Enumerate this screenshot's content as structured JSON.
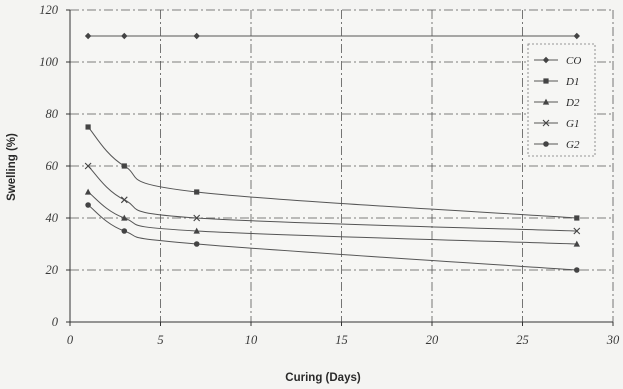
{
  "chart_data": {
    "type": "line",
    "xlabel": "Curing (Days)",
    "ylabel": "Swelling (%)",
    "xlim": [
      0,
      30
    ],
    "ylim": [
      0,
      120
    ],
    "x_ticks": [
      0,
      5,
      10,
      15,
      20,
      25,
      30
    ],
    "y_ticks": [
      0,
      20,
      40,
      60,
      80,
      100,
      120
    ],
    "x_tick_labels": [
      "0",
      "5",
      "10",
      "15",
      "20",
      "25",
      "30"
    ],
    "y_tick_labels": [
      "0",
      "20",
      "40",
      "60",
      "80",
      "100",
      "120"
    ],
    "grid": true,
    "legend_position": "top-right",
    "series": [
      {
        "name": "CO",
        "marker": "diamond",
        "x": [
          1,
          3,
          7,
          28
        ],
        "values": [
          110,
          110,
          110,
          110
        ]
      },
      {
        "name": "D1",
        "marker": "square",
        "x": [
          1,
          3,
          7,
          28
        ],
        "values": [
          75,
          60,
          50,
          40
        ]
      },
      {
        "name": "D2",
        "marker": "triangle",
        "x": [
          1,
          3,
          7,
          28
        ],
        "values": [
          50,
          40,
          35,
          30
        ]
      },
      {
        "name": "G1",
        "marker": "cross",
        "x": [
          1,
          3,
          7,
          28
        ],
        "values": [
          60,
          47,
          40,
          35
        ]
      },
      {
        "name": "G2",
        "marker": "circle",
        "x": [
          1,
          3,
          7,
          28
        ],
        "values": [
          45,
          35,
          30,
          20
        ]
      }
    ]
  }
}
